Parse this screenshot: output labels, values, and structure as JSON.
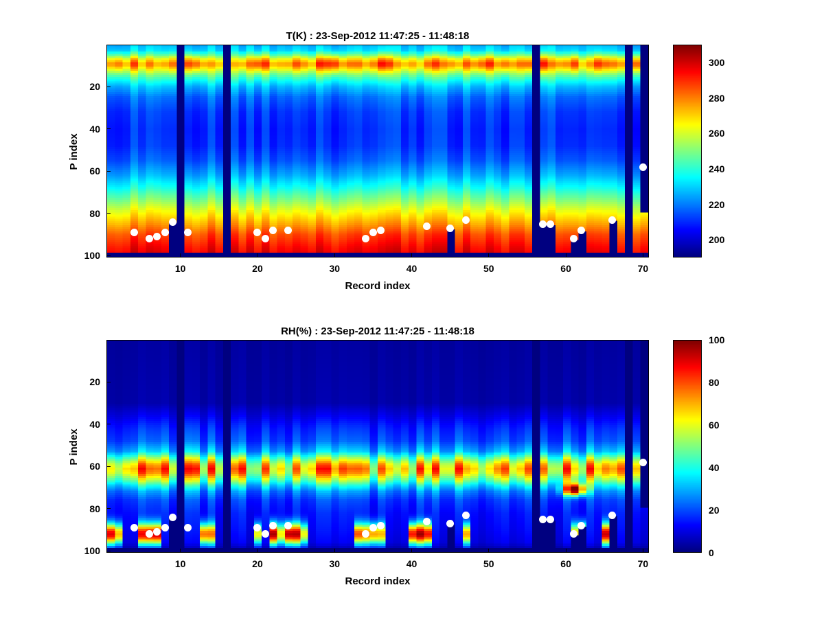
{
  "figure": {
    "background_color": "#ffffff",
    "marker_color": "#ffffff"
  },
  "chart_data": [
    {
      "type": "heatmap",
      "title": "T(K) : 23-Sep-2012 11:47:25 - 11:48:18",
      "xlabel": "Record index",
      "ylabel": "P index",
      "x_range": [
        1,
        70
      ],
      "y_range": [
        1,
        100
      ],
      "y_axis_reversed": true,
      "colormap": "jet",
      "color_range": [
        190,
        310
      ],
      "colorbar_ticks": [
        200,
        220,
        240,
        260,
        280,
        300
      ],
      "x_ticks": [
        10,
        20,
        30,
        40,
        50,
        60,
        70
      ],
      "y_ticks": [
        20,
        40,
        60,
        80,
        100
      ],
      "vertical_profile": [
        [
          1,
          228
        ],
        [
          3,
          232
        ],
        [
          5,
          248
        ],
        [
          7,
          268
        ],
        [
          9,
          281
        ],
        [
          10,
          280
        ],
        [
          12,
          266
        ],
        [
          14,
          252
        ],
        [
          17,
          238
        ],
        [
          20,
          228
        ],
        [
          25,
          218
        ],
        [
          32,
          212
        ],
        [
          40,
          210
        ],
        [
          48,
          211
        ],
        [
          55,
          216
        ],
        [
          62,
          226
        ],
        [
          68,
          238
        ],
        [
          74,
          252
        ],
        [
          80,
          266
        ],
        [
          85,
          276
        ],
        [
          90,
          287
        ],
        [
          96,
          295
        ],
        [
          98,
          297
        ]
      ],
      "column_noise": 5,
      "band_center_p": 9,
      "band_noise": 12,
      "missing_columns": [
        10,
        16,
        56,
        68
      ],
      "partial_missing_columns": [
        {
          "x": 70,
          "valid_from_p": 80
        }
      ],
      "surface_cut_columns": [
        {
          "x": 9,
          "from_p": 85
        },
        {
          "x": 45,
          "from_p": 88
        },
        {
          "x": 57,
          "from_p": 86
        },
        {
          "x": 58,
          "from_p": 86
        },
        {
          "x": 61,
          "from_p": 93
        },
        {
          "x": 62,
          "from_p": 89
        },
        {
          "x": 66,
          "from_p": 84
        }
      ],
      "missing_bottom_rows_from_p": 99,
      "markers": [
        [
          4,
          89
        ],
        [
          6,
          92
        ],
        [
          7,
          91
        ],
        [
          8,
          89
        ],
        [
          9,
          84
        ],
        [
          11,
          89
        ],
        [
          20,
          89
        ],
        [
          21,
          92
        ],
        [
          22,
          88
        ],
        [
          24,
          88
        ],
        [
          34,
          92
        ],
        [
          35,
          89
        ],
        [
          36,
          88
        ],
        [
          42,
          86
        ],
        [
          45,
          87
        ],
        [
          47,
          83
        ],
        [
          57,
          85
        ],
        [
          58,
          85
        ],
        [
          61,
          92
        ],
        [
          62,
          88
        ],
        [
          66,
          83
        ],
        [
          70,
          58
        ]
      ]
    },
    {
      "type": "heatmap",
      "title": "RH(%) : 23-Sep-2012 11:47:25 - 11:48:18",
      "xlabel": "Record index",
      "ylabel": "P index",
      "x_range": [
        1,
        70
      ],
      "y_range": [
        1,
        100
      ],
      "y_axis_reversed": true,
      "colormap": "jet",
      "color_range": [
        0,
        100
      ],
      "colorbar_ticks": [
        0,
        20,
        40,
        60,
        80,
        100
      ],
      "x_ticks": [
        10,
        20,
        30,
        40,
        50,
        60,
        70
      ],
      "y_ticks": [
        20,
        40,
        60,
        80,
        100
      ],
      "vertical_profile": [
        [
          1,
          3
        ],
        [
          30,
          4
        ],
        [
          36,
          10
        ],
        [
          42,
          16
        ],
        [
          48,
          20
        ],
        [
          53,
          30
        ],
        [
          56,
          48
        ],
        [
          59,
          64
        ],
        [
          61,
          70
        ],
        [
          63,
          66
        ],
        [
          66,
          52
        ],
        [
          69,
          36
        ],
        [
          72,
          25
        ],
        [
          76,
          18
        ],
        [
          82,
          14
        ],
        [
          90,
          12
        ],
        [
          96,
          10
        ],
        [
          98,
          6
        ]
      ],
      "column_gain_variation": 0.55,
      "wet_columns": [
        1,
        2,
        5,
        6,
        7,
        13,
        14,
        20,
        22,
        23,
        24,
        25,
        26,
        33,
        34,
        35,
        36,
        40,
        41,
        42,
        47,
        61,
        62,
        65,
        66
      ],
      "wet_peak_p": 92,
      "hot_spots": [
        {
          "x": 61,
          "y": 71,
          "value": 80
        }
      ],
      "missing_columns": [
        10,
        16,
        56,
        68
      ],
      "partial_missing_columns": [
        {
          "x": 70,
          "valid_from_p": 80
        }
      ],
      "surface_cut_columns": [
        {
          "x": 9,
          "from_p": 85
        },
        {
          "x": 45,
          "from_p": 88
        },
        {
          "x": 57,
          "from_p": 86
        },
        {
          "x": 58,
          "from_p": 86
        },
        {
          "x": 61,
          "from_p": 93
        },
        {
          "x": 62,
          "from_p": 89
        },
        {
          "x": 66,
          "from_p": 84
        }
      ],
      "missing_bottom_rows_from_p": 99,
      "markers": [
        [
          4,
          89
        ],
        [
          6,
          92
        ],
        [
          7,
          91
        ],
        [
          8,
          89
        ],
        [
          9,
          84
        ],
        [
          11,
          89
        ],
        [
          20,
          89
        ],
        [
          21,
          92
        ],
        [
          22,
          88
        ],
        [
          24,
          88
        ],
        [
          34,
          92
        ],
        [
          35,
          89
        ],
        [
          36,
          88
        ],
        [
          42,
          86
        ],
        [
          45,
          87
        ],
        [
          47,
          83
        ],
        [
          57,
          85
        ],
        [
          58,
          85
        ],
        [
          61,
          92
        ],
        [
          62,
          88
        ],
        [
          66,
          83
        ],
        [
          70,
          58
        ]
      ]
    }
  ]
}
